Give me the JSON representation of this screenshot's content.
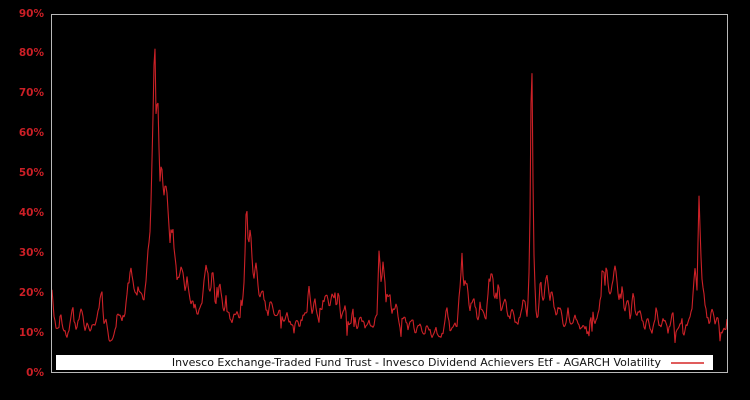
{
  "chart_data": {
    "type": "line",
    "title": "",
    "xlabel": "",
    "ylabel": "",
    "ylim": [
      0,
      90
    ],
    "grid": false,
    "x_axis_labels_visible": false,
    "yticks": [
      "0%",
      "10%",
      "20%",
      "30%",
      "40%",
      "50%",
      "60%",
      "70%",
      "80%",
      "90%"
    ],
    "legend": "Invesco Exchange-Traded Fund Trust - Invesco Dividend Achievers Etf - AGARCH Volatility",
    "legend_position": "bottom-inside",
    "series": [
      {
        "name": "AGARCH Volatility",
        "color": "#cc2127",
        "unit": "%",
        "keypoints": [
          [
            0,
            20
          ],
          [
            2,
            14
          ],
          [
            4,
            11
          ],
          [
            7,
            12
          ],
          [
            9,
            15
          ],
          [
            12,
            10
          ],
          [
            15,
            9
          ],
          [
            18,
            12
          ],
          [
            21,
            15.5
          ],
          [
            24,
            11
          ],
          [
            27,
            13
          ],
          [
            30,
            16
          ],
          [
            33,
            10
          ],
          [
            36,
            12
          ],
          [
            39,
            10.5
          ],
          [
            42,
            12.5
          ],
          [
            44,
            13
          ],
          [
            47,
            17
          ],
          [
            50,
            22
          ],
          [
            52,
            13
          ],
          [
            54,
            15
          ],
          [
            57,
            9
          ],
          [
            61,
            8
          ],
          [
            64,
            12
          ],
          [
            66,
            15.5
          ],
          [
            70,
            12
          ],
          [
            74,
            16
          ],
          [
            76,
            23
          ],
          [
            80,
            25
          ],
          [
            84,
            18
          ],
          [
            88,
            22
          ],
          [
            92,
            16
          ],
          [
            96,
            28
          ],
          [
            99,
            38
          ],
          [
            101,
            62
          ],
          [
            103,
            85
          ],
          [
            104.5,
            60
          ],
          [
            106,
            70
          ],
          [
            108,
            48
          ],
          [
            110,
            55
          ],
          [
            112,
            42
          ],
          [
            115,
            48
          ],
          [
            118,
            32
          ],
          [
            121,
            38
          ],
          [
            124,
            26
          ],
          [
            127,
            22
          ],
          [
            130,
            27
          ],
          [
            133,
            20
          ],
          [
            136,
            24
          ],
          [
            139,
            17
          ],
          [
            143,
            19
          ],
          [
            147,
            15
          ],
          [
            151,
            18
          ],
          [
            155,
            28
          ],
          [
            158,
            20
          ],
          [
            161,
            26
          ],
          [
            164,
            17
          ],
          [
            168,
            22
          ],
          [
            172,
            15
          ],
          [
            176,
            17
          ],
          [
            180,
            13
          ],
          [
            184,
            15.5
          ],
          [
            188,
            13
          ],
          [
            192,
            20
          ],
          [
            195,
            42
          ],
          [
            197,
            30
          ],
          [
            199,
            35
          ],
          [
            202,
            24
          ],
          [
            205,
            28
          ],
          [
            208,
            19
          ],
          [
            212,
            22
          ],
          [
            216,
            15
          ],
          [
            220,
            17
          ],
          [
            224,
            13
          ],
          [
            228,
            15.5
          ],
          [
            232,
            12
          ],
          [
            236,
            14
          ],
          [
            240,
            11.5
          ],
          [
            244,
            13.5
          ],
          [
            248,
            11
          ],
          [
            252,
            14
          ],
          [
            256,
            17
          ],
          [
            258,
            22
          ],
          [
            261,
            15
          ],
          [
            264,
            17.5
          ],
          [
            268,
            13.5
          ],
          [
            272,
            18
          ],
          [
            275,
            20.5
          ],
          [
            278,
            15
          ],
          [
            281,
            21
          ],
          [
            284,
            16
          ],
          [
            287,
            20
          ],
          [
            290,
            14
          ],
          [
            294,
            16.5
          ],
          [
            298,
            12.5
          ],
          [
            302,
            15
          ],
          [
            306,
            11.5
          ],
          [
            310,
            14
          ],
          [
            314,
            10.5
          ],
          [
            318,
            13
          ],
          [
            322,
            11
          ],
          [
            326,
            15
          ],
          [
            328,
            31.5
          ],
          [
            330,
            22
          ],
          [
            332,
            26
          ],
          [
            335,
            18
          ],
          [
            338,
            21
          ],
          [
            341,
            15
          ],
          [
            345,
            17
          ],
          [
            349,
            12.5
          ],
          [
            353,
            15
          ],
          [
            357,
            11
          ],
          [
            361,
            13.5
          ],
          [
            365,
            10
          ],
          [
            369,
            12.5
          ],
          [
            373,
            9.5
          ],
          [
            377,
            12
          ],
          [
            381,
            9
          ],
          [
            385,
            11
          ],
          [
            389,
            8.5
          ],
          [
            393,
            10.5
          ],
          [
            396,
            16.5
          ],
          [
            399,
            11
          ],
          [
            403,
            13
          ],
          [
            406,
            10.5
          ],
          [
            409,
            20
          ],
          [
            411,
            30
          ],
          [
            413,
            21
          ],
          [
            416,
            24
          ],
          [
            419,
            16
          ],
          [
            423,
            18
          ],
          [
            427,
            13
          ],
          [
            431,
            15
          ],
          [
            435,
            12
          ],
          [
            438,
            22
          ],
          [
            441,
            26
          ],
          [
            444,
            18
          ],
          [
            447,
            24
          ],
          [
            450,
            16
          ],
          [
            454,
            18
          ],
          [
            458,
            13
          ],
          [
            462,
            15.5
          ],
          [
            466,
            12
          ],
          [
            470,
            14
          ],
          [
            474,
            19
          ],
          [
            477,
            14
          ],
          [
            479,
            30
          ],
          [
            481,
            85
          ],
          [
            483,
            35
          ],
          [
            485,
            18
          ],
          [
            487,
            14
          ],
          [
            490,
            25
          ],
          [
            493,
            17
          ],
          [
            496,
            27
          ],
          [
            499,
            18
          ],
          [
            502,
            21
          ],
          [
            505,
            15
          ],
          [
            509,
            17
          ],
          [
            513,
            12.5
          ],
          [
            517,
            14.5
          ],
          [
            521,
            11
          ],
          [
            525,
            13.5
          ],
          [
            529,
            10.5
          ],
          [
            533,
            13
          ],
          [
            537,
            10
          ],
          [
            541,
            14
          ],
          [
            545,
            11.5
          ],
          [
            549,
            18
          ],
          [
            552,
            28
          ],
          [
            554,
            20
          ],
          [
            556,
            28
          ],
          [
            559,
            18
          ],
          [
            562,
            22
          ],
          [
            565,
            25
          ],
          [
            568,
            17
          ],
          [
            571,
            23
          ],
          [
            574,
            15
          ],
          [
            577,
            18
          ],
          [
            580,
            13
          ],
          [
            583,
            20
          ],
          [
            586,
            13.5
          ],
          [
            590,
            15
          ],
          [
            594,
            11
          ],
          [
            598,
            13
          ],
          [
            602,
            10
          ],
          [
            606,
            16.5
          ],
          [
            610,
            11.5
          ],
          [
            614,
            13
          ],
          [
            618,
            10
          ],
          [
            622,
            14.5
          ],
          [
            626,
            10.5
          ],
          [
            630,
            12.5
          ],
          [
            634,
            9.5
          ],
          [
            638,
            13
          ],
          [
            642,
            17
          ],
          [
            645,
            25
          ],
          [
            647,
            20
          ],
          [
            649,
            47
          ],
          [
            651,
            28
          ],
          [
            653,
            20
          ],
          [
            656,
            15
          ],
          [
            659,
            12
          ],
          [
            662,
            16.5
          ],
          [
            665,
            11
          ],
          [
            668,
            13
          ],
          [
            671,
            9.5
          ],
          [
            674,
            11.5
          ],
          [
            677,
            10
          ]
        ]
      }
    ],
    "noise": {
      "seed": 20,
      "rel_amp": 0.09,
      "spike_prob": 0.05,
      "spike_amp": 6
    },
    "colors": {
      "background": "#000000",
      "axis_labels": "#cc1f26",
      "plot_border": "#b9b9b9",
      "series_line": "#cc2127",
      "legend_bg": "#ffffff",
      "legend_text": "#111111",
      "legend_sample_line": "#e05c5c"
    }
  }
}
